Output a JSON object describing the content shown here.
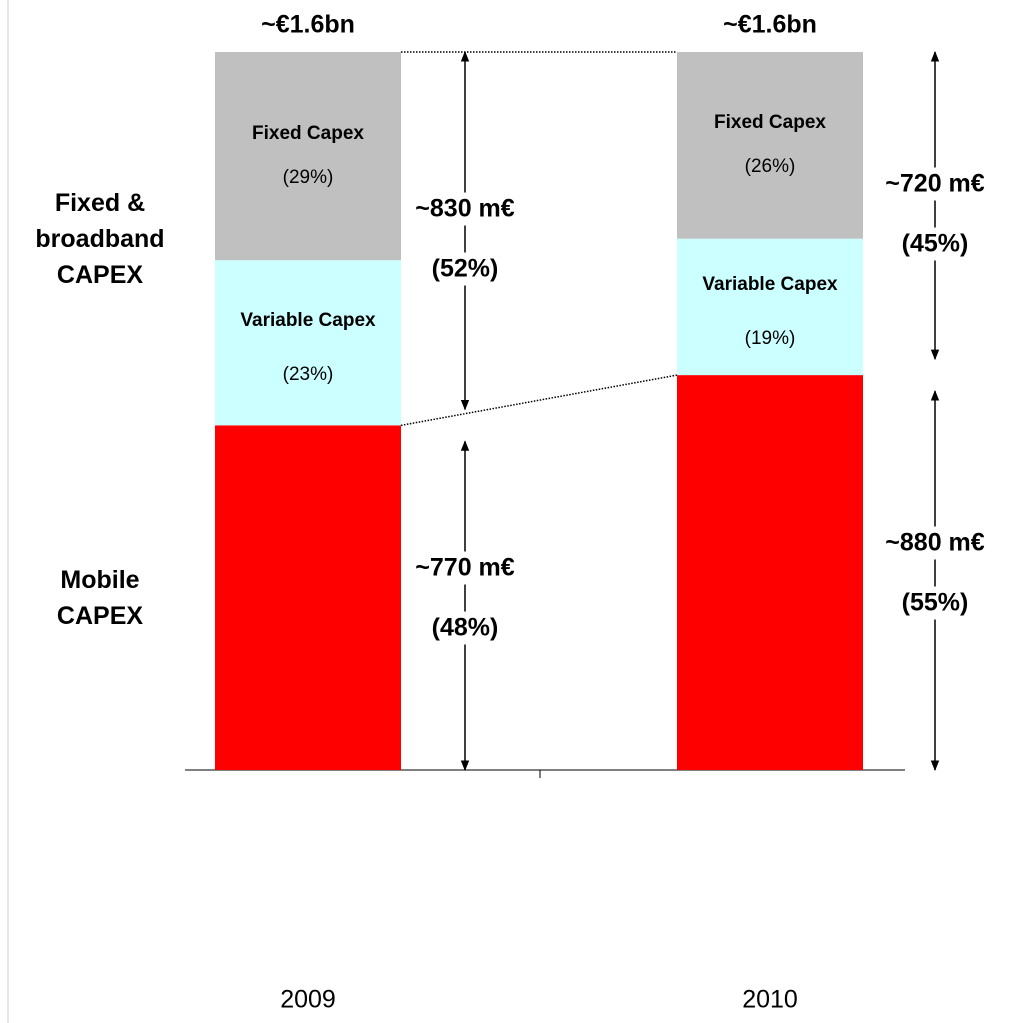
{
  "chart_data": {
    "type": "bar",
    "stacked": true,
    "categories": [
      "2009",
      "2010"
    ],
    "totals": [
      "~€1.6bn",
      "~€1.6bn"
    ],
    "ylim": [
      0,
      100
    ],
    "series": [
      {
        "name": "Mobile CAPEX",
        "color": "#ff0000",
        "values": [
          48,
          55
        ],
        "value_labels": [
          "(48%)",
          "(55%)"
        ],
        "amount_labels": [
          "~770 m€",
          "~880 m€"
        ]
      },
      {
        "name": "Variable Capex",
        "color": "#ccffff",
        "values": [
          23,
          19
        ],
        "value_labels": [
          "(23%)",
          "(19%)"
        ]
      },
      {
        "name": "Fixed Capex",
        "color": "#c0c0c0",
        "values": [
          29,
          26
        ],
        "value_labels": [
          "(29%)",
          "(26%)"
        ]
      }
    ],
    "fixed_broadband": {
      "label": "Fixed & broadband CAPEX",
      "amount_labels": [
        "~830 m€",
        "~720 m€"
      ],
      "share_labels": [
        "(52%)",
        "(45%)"
      ]
    }
  }
}
